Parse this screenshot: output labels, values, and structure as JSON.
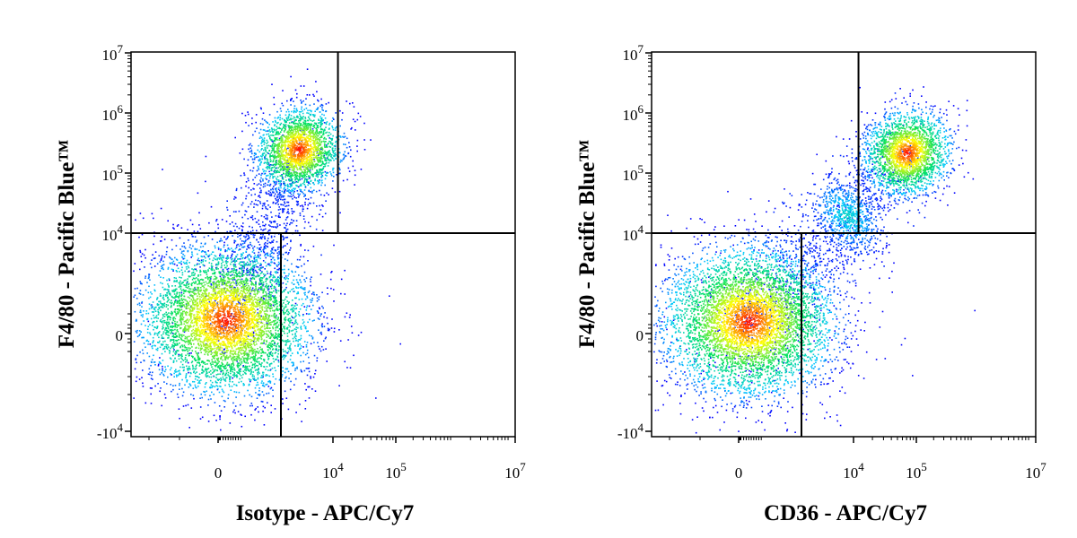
{
  "chart_data": [
    {
      "type": "scatter",
      "subtype": "flow-cytometry-density-dot-plot",
      "xlabel": "Isotype - APC/Cy7",
      "ylabel": "F4/80 - Pacific Blue™",
      "x_scale": "biexponential",
      "y_scale": "biexponential",
      "x_ticks": [
        "0",
        "10^4",
        "10^5",
        "10^7"
      ],
      "y_ticks": [
        "10^7",
        "10^6",
        "10^5",
        "10^4",
        "0",
        "-10^4"
      ],
      "quadrant_gates": {
        "horizontal_y": 10000,
        "upper_vertical_x": 12000,
        "lower_vertical_x": 2500
      },
      "populations": [
        {
          "center_x": 300,
          "center_y": 800,
          "peak_density": "high"
        },
        {
          "center_x": 3500,
          "center_y": 250000,
          "peak_density": "high"
        }
      ],
      "color_scale": [
        "#0000ff",
        "#00c8ff",
        "#00e060",
        "#ffff00",
        "#ff0000"
      ]
    },
    {
      "type": "scatter",
      "subtype": "flow-cytometry-density-dot-plot",
      "xlabel": "CD36 - APC/Cy7",
      "ylabel": "F4/80 - Pacific Blue™",
      "x_scale": "biexponential",
      "y_scale": "biexponential",
      "x_ticks": [
        "0",
        "10^4",
        "10^5",
        "10^7"
      ],
      "y_ticks": [
        "10^7",
        "10^6",
        "10^5",
        "10^4",
        "0",
        "-10^4"
      ],
      "quadrant_gates": {
        "horizontal_y": 10000,
        "upper_vertical_x": 12000,
        "lower_vertical_x": 2500
      },
      "populations": [
        {
          "center_x": 400,
          "center_y": 700,
          "peak_density": "high"
        },
        {
          "center_x": 70000,
          "center_y": 220000,
          "peak_density": "high"
        },
        {
          "center_x": 8000,
          "center_y": 20000,
          "peak_density": "low"
        }
      ],
      "color_scale": [
        "#0000ff",
        "#00c8ff",
        "#00e060",
        "#ffff00",
        "#ff0000"
      ]
    }
  ]
}
